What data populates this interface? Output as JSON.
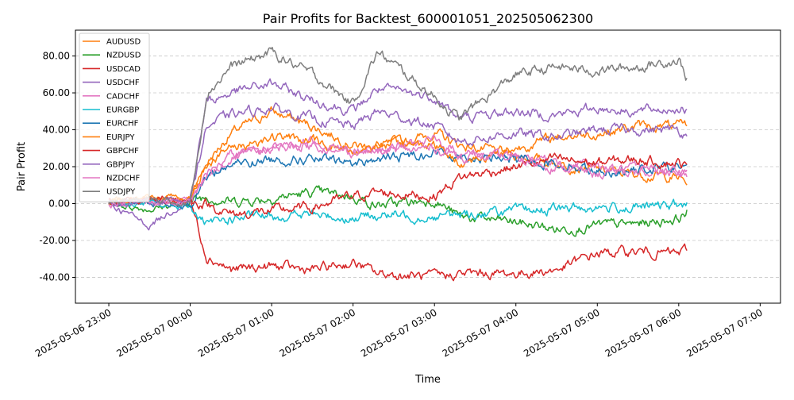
{
  "chart_data": {
    "type": "line",
    "title": "Pair Profits for Backtest_600001051_202505062300",
    "xlabel": "Time",
    "ylabel": "Pair Profit",
    "x_ticks": [
      "2025-05-06 23:00",
      "2025-05-07 00:00",
      "2025-05-07 01:00",
      "2025-05-07 02:00",
      "2025-05-07 03:00",
      "2025-05-07 04:00",
      "2025-05-07 05:00",
      "2025-05-07 06:00",
      "2025-05-07 07:00"
    ],
    "y_ticks": [
      "-40.00",
      "-20.00",
      "0.00",
      "20.00",
      "40.00",
      "60.00",
      "80.00"
    ],
    "x_range_hours": [
      -0.41,
      8.25
    ],
    "ylim": [
      -54,
      94
    ],
    "grid": "y-dashed",
    "legend_position": "upper-left",
    "x_hours": [
      0,
      0.5,
      1.0,
      1.2,
      1.5,
      2.0,
      2.5,
      3.0,
      3.3,
      4.0,
      4.3,
      5.0,
      5.5,
      6.0,
      6.5,
      7.0,
      7.1
    ],
    "series": [
      {
        "name": "AUDUSD",
        "color": "#ff7f0e",
        "values": [
          1,
          3,
          2,
          22,
          38,
          50,
          42,
          32,
          30,
          38,
          32,
          26,
          22,
          18,
          16,
          14,
          11
        ]
      },
      {
        "name": "NZDUSD",
        "color": "#2ca02c",
        "values": [
          0,
          -3,
          1,
          4,
          1,
          3,
          6,
          4,
          -1,
          2,
          -7,
          -10,
          -14,
          -12,
          -11,
          -8,
          -4
        ]
      },
      {
        "name": "USDCAD",
        "color": "#d62728",
        "values": [
          1,
          3,
          2,
          -28,
          -36,
          -34,
          -36,
          -32,
          -38,
          -40,
          -38,
          -38,
          -36,
          -27,
          -26,
          -27,
          -25
        ]
      },
      {
        "name": "USDCHF",
        "color": "#9467bd",
        "values": [
          0,
          -12,
          3,
          55,
          60,
          65,
          56,
          50,
          62,
          58,
          46,
          50,
          48,
          52,
          50,
          52,
          50
        ]
      },
      {
        "name": "CADCHF",
        "color": "#e377c2",
        "values": [
          -1,
          2,
          1,
          14,
          24,
          30,
          34,
          28,
          30,
          34,
          28,
          26,
          22,
          20,
          18,
          18,
          17
        ]
      },
      {
        "name": "EURGBP",
        "color": "#17becf",
        "values": [
          0,
          0,
          -2,
          -12,
          -8,
          -7,
          -6,
          -8,
          -6,
          -7,
          -6,
          -4,
          -3,
          -2,
          -2,
          -1,
          -1
        ]
      },
      {
        "name": "EURCHF",
        "color": "#1f77b4",
        "values": [
          0,
          1,
          -1,
          15,
          21,
          24,
          24,
          22,
          24,
          28,
          26,
          24,
          22,
          18,
          18,
          20,
          21
        ]
      },
      {
        "name": "EURJPY",
        "color": "#ff7f0e",
        "values": [
          0,
          4,
          3,
          22,
          30,
          36,
          34,
          28,
          32,
          32,
          22,
          30,
          36,
          38,
          42,
          42,
          42
        ]
      },
      {
        "name": "GBPCHF",
        "color": "#d62728",
        "values": [
          0,
          2,
          1,
          0,
          -6,
          -4,
          -2,
          4,
          6,
          4,
          14,
          20,
          24,
          22,
          24,
          22,
          20
        ]
      },
      {
        "name": "GBPJPY",
        "color": "#9467bd",
        "values": [
          0,
          1,
          2,
          42,
          48,
          52,
          46,
          42,
          50,
          42,
          34,
          38,
          36,
          40,
          40,
          40,
          37
        ]
      },
      {
        "name": "NZDCHF",
        "color": "#e377c2",
        "values": [
          0,
          1,
          0,
          16,
          26,
          30,
          32,
          28,
          28,
          30,
          26,
          24,
          20,
          16,
          18,
          18,
          18
        ]
      },
      {
        "name": "USDJPY",
        "color": "#7f7f7f",
        "values": [
          1,
          2,
          0,
          60,
          74,
          82,
          70,
          54,
          82,
          58,
          46,
          70,
          74,
          72,
          74,
          78,
          68
        ]
      }
    ]
  }
}
